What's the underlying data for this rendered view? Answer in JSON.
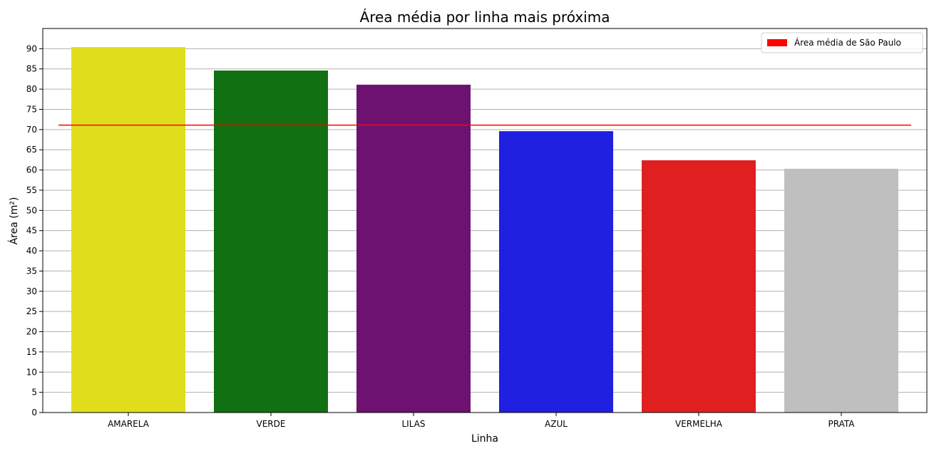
{
  "chart_data": {
    "type": "bar",
    "title": "Área média por linha mais próxima",
    "xlabel": "Linha",
    "ylabel": "Área (m²)",
    "categories": [
      "AMARELA",
      "VERDE",
      "LILAS",
      "AZUL",
      "VERMELHA",
      "PRATA"
    ],
    "values": [
      90.4,
      84.6,
      81.1,
      69.6,
      62.4,
      60.3
    ],
    "colors": [
      "#e0dd1d",
      "#117011",
      "#6d1270",
      "#1f20e0",
      "#e02020",
      "#bfbfbf"
    ],
    "ylim": [
      0,
      95
    ],
    "yticks": [
      0,
      5,
      10,
      15,
      20,
      25,
      30,
      35,
      40,
      45,
      50,
      55,
      60,
      65,
      70,
      75,
      80,
      85,
      90
    ],
    "grid": "horizontal",
    "reference_line": {
      "label": "Área média de São Paulo",
      "value": 71.1,
      "color": "#ff0000"
    },
    "legend_position": "top-right"
  }
}
